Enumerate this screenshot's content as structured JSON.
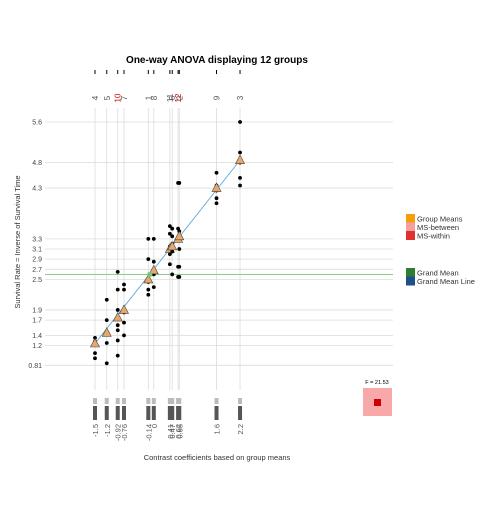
{
  "chart_data": {
    "type": "scatter",
    "title": "One-way ANOVA displaying 12 groups",
    "xlabel": "Contrast coefficients based on group means",
    "ylabel": "Survival Rate = Inverse of Survival Time",
    "xlim": [
      -1.8,
      2.5
    ],
    "ylim": [
      0.55,
      5.75
    ],
    "y_ticks": [
      0.81,
      1.2,
      1.4,
      1.7,
      1.9,
      2.5,
      2.7,
      2.9,
      3.1,
      3.3,
      4.3,
      4.8,
      5.6
    ],
    "grand_mean": 2.6,
    "f_statistic_label": "F = 21.53",
    "groups": [
      {
        "top_label": "4",
        "x_label": "-1.5",
        "x": -1.5,
        "mean": 1.24,
        "points": [
          1.35,
          1.28,
          1.22,
          1.05,
          0.95
        ]
      },
      {
        "top_label": "5",
        "x_label": "-1.2",
        "x": -1.2,
        "mean": 1.45,
        "points": [
          2.1,
          1.7,
          1.45,
          1.25,
          0.85
        ]
      },
      {
        "top_label": "10",
        "x_label": "-0.92",
        "x": -0.92,
        "mean": 1.75,
        "points": [
          2.65,
          2.3,
          1.9,
          1.6,
          1.5,
          1.3,
          1.0
        ],
        "highlight": true
      },
      {
        "top_label": "7",
        "x_label": "-0.76",
        "x": -0.76,
        "mean": 1.9,
        "points": [
          2.4,
          2.3,
          1.85,
          1.65,
          1.4
        ]
      },
      {
        "top_label": "1",
        "x_label": "-0.14",
        "x": -0.14,
        "mean": 2.5,
        "points": [
          3.3,
          2.9,
          2.45,
          2.3,
          2.2
        ]
      },
      {
        "top_label": "8",
        "x_label": "0",
        "x": 0.0,
        "mean": 2.68,
        "points": [
          3.3,
          2.85,
          2.7,
          2.6,
          2.35
        ]
      },
      {
        "top_label": "11",
        "x_label": "0.41",
        "x": 0.41,
        "mean": 3.1,
        "points": [
          3.55,
          3.4,
          3.15,
          3.0,
          2.8
        ]
      },
      {
        "top_label": "6",
        "x_label": "0.47",
        "x": 0.47,
        "mean": 3.15,
        "points": [
          3.5,
          3.35,
          3.2,
          3.05,
          2.6
        ]
      },
      {
        "top_label": "12",
        "x_label": "0.62",
        "x": 0.62,
        "mean": 3.3,
        "points": [
          4.4,
          3.5,
          3.3,
          2.75,
          2.55
        ],
        "highlight": true
      },
      {
        "top_label": "2",
        "x_label": "0.65",
        "x": 0.65,
        "mean": 3.35,
        "points": [
          4.4,
          3.45,
          3.1,
          2.75,
          2.55
        ]
      },
      {
        "top_label": "9",
        "x_label": "1.6",
        "x": 1.6,
        "mean": 4.3,
        "points": [
          4.6,
          4.35,
          4.25,
          4.1,
          4.0
        ]
      },
      {
        "top_label": "3",
        "x_label": "2.2",
        "x": 2.2,
        "mean": 4.85,
        "points": [
          5.6,
          5.0,
          4.8,
          4.5,
          4.35
        ]
      }
    ],
    "legend": {
      "placement": "right",
      "items_top": [
        {
          "label": "Group Means",
          "color": "#f59e0b"
        },
        {
          "label": "MS-between",
          "color": "#f4a0a0"
        },
        {
          "label": "MS-within",
          "color": "#e03030"
        }
      ],
      "items_bottom": [
        {
          "label": "Grand Mean",
          "color": "#2e7d32"
        },
        {
          "label": "Grand Mean Line",
          "color": "#1f4f8b"
        }
      ]
    },
    "colors": {
      "grid": "#dcdcdc",
      "point": "#000000",
      "mean_marker": "#e8a86a",
      "fit_line": "#5aa8e0",
      "grand_mean_line": "#77c777",
      "highlight_label": "#cc0000",
      "ms_between": "#f8a8a8",
      "ms_within": "#cc0000"
    }
  }
}
